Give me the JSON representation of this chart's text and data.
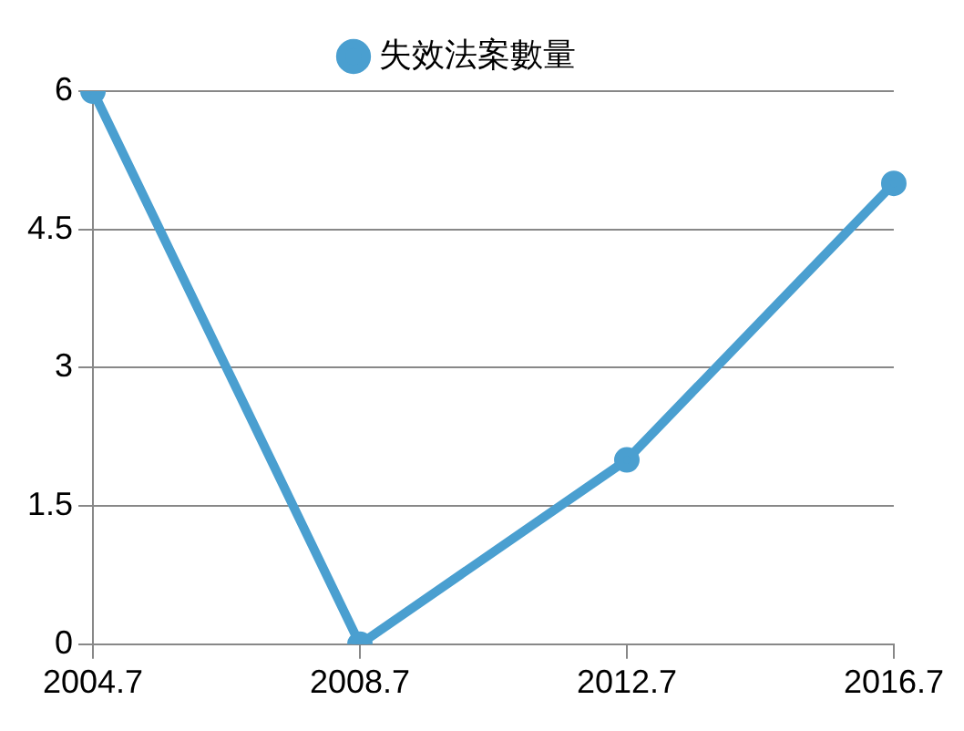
{
  "chart_data": {
    "type": "line",
    "categories": [
      "2004.7",
      "2008.7",
      "2012.7",
      "2016.7"
    ],
    "series": [
      {
        "name": "失效法案數量",
        "color": "#4a9fd0",
        "values": [
          6,
          0,
          2,
          5
        ]
      }
    ],
    "ylim": [
      0,
      6
    ],
    "yticks": [
      0,
      1.5,
      3,
      4.5,
      6
    ],
    "grid": "y",
    "legend": "top",
    "marker": "circle",
    "line_style": "solid"
  }
}
